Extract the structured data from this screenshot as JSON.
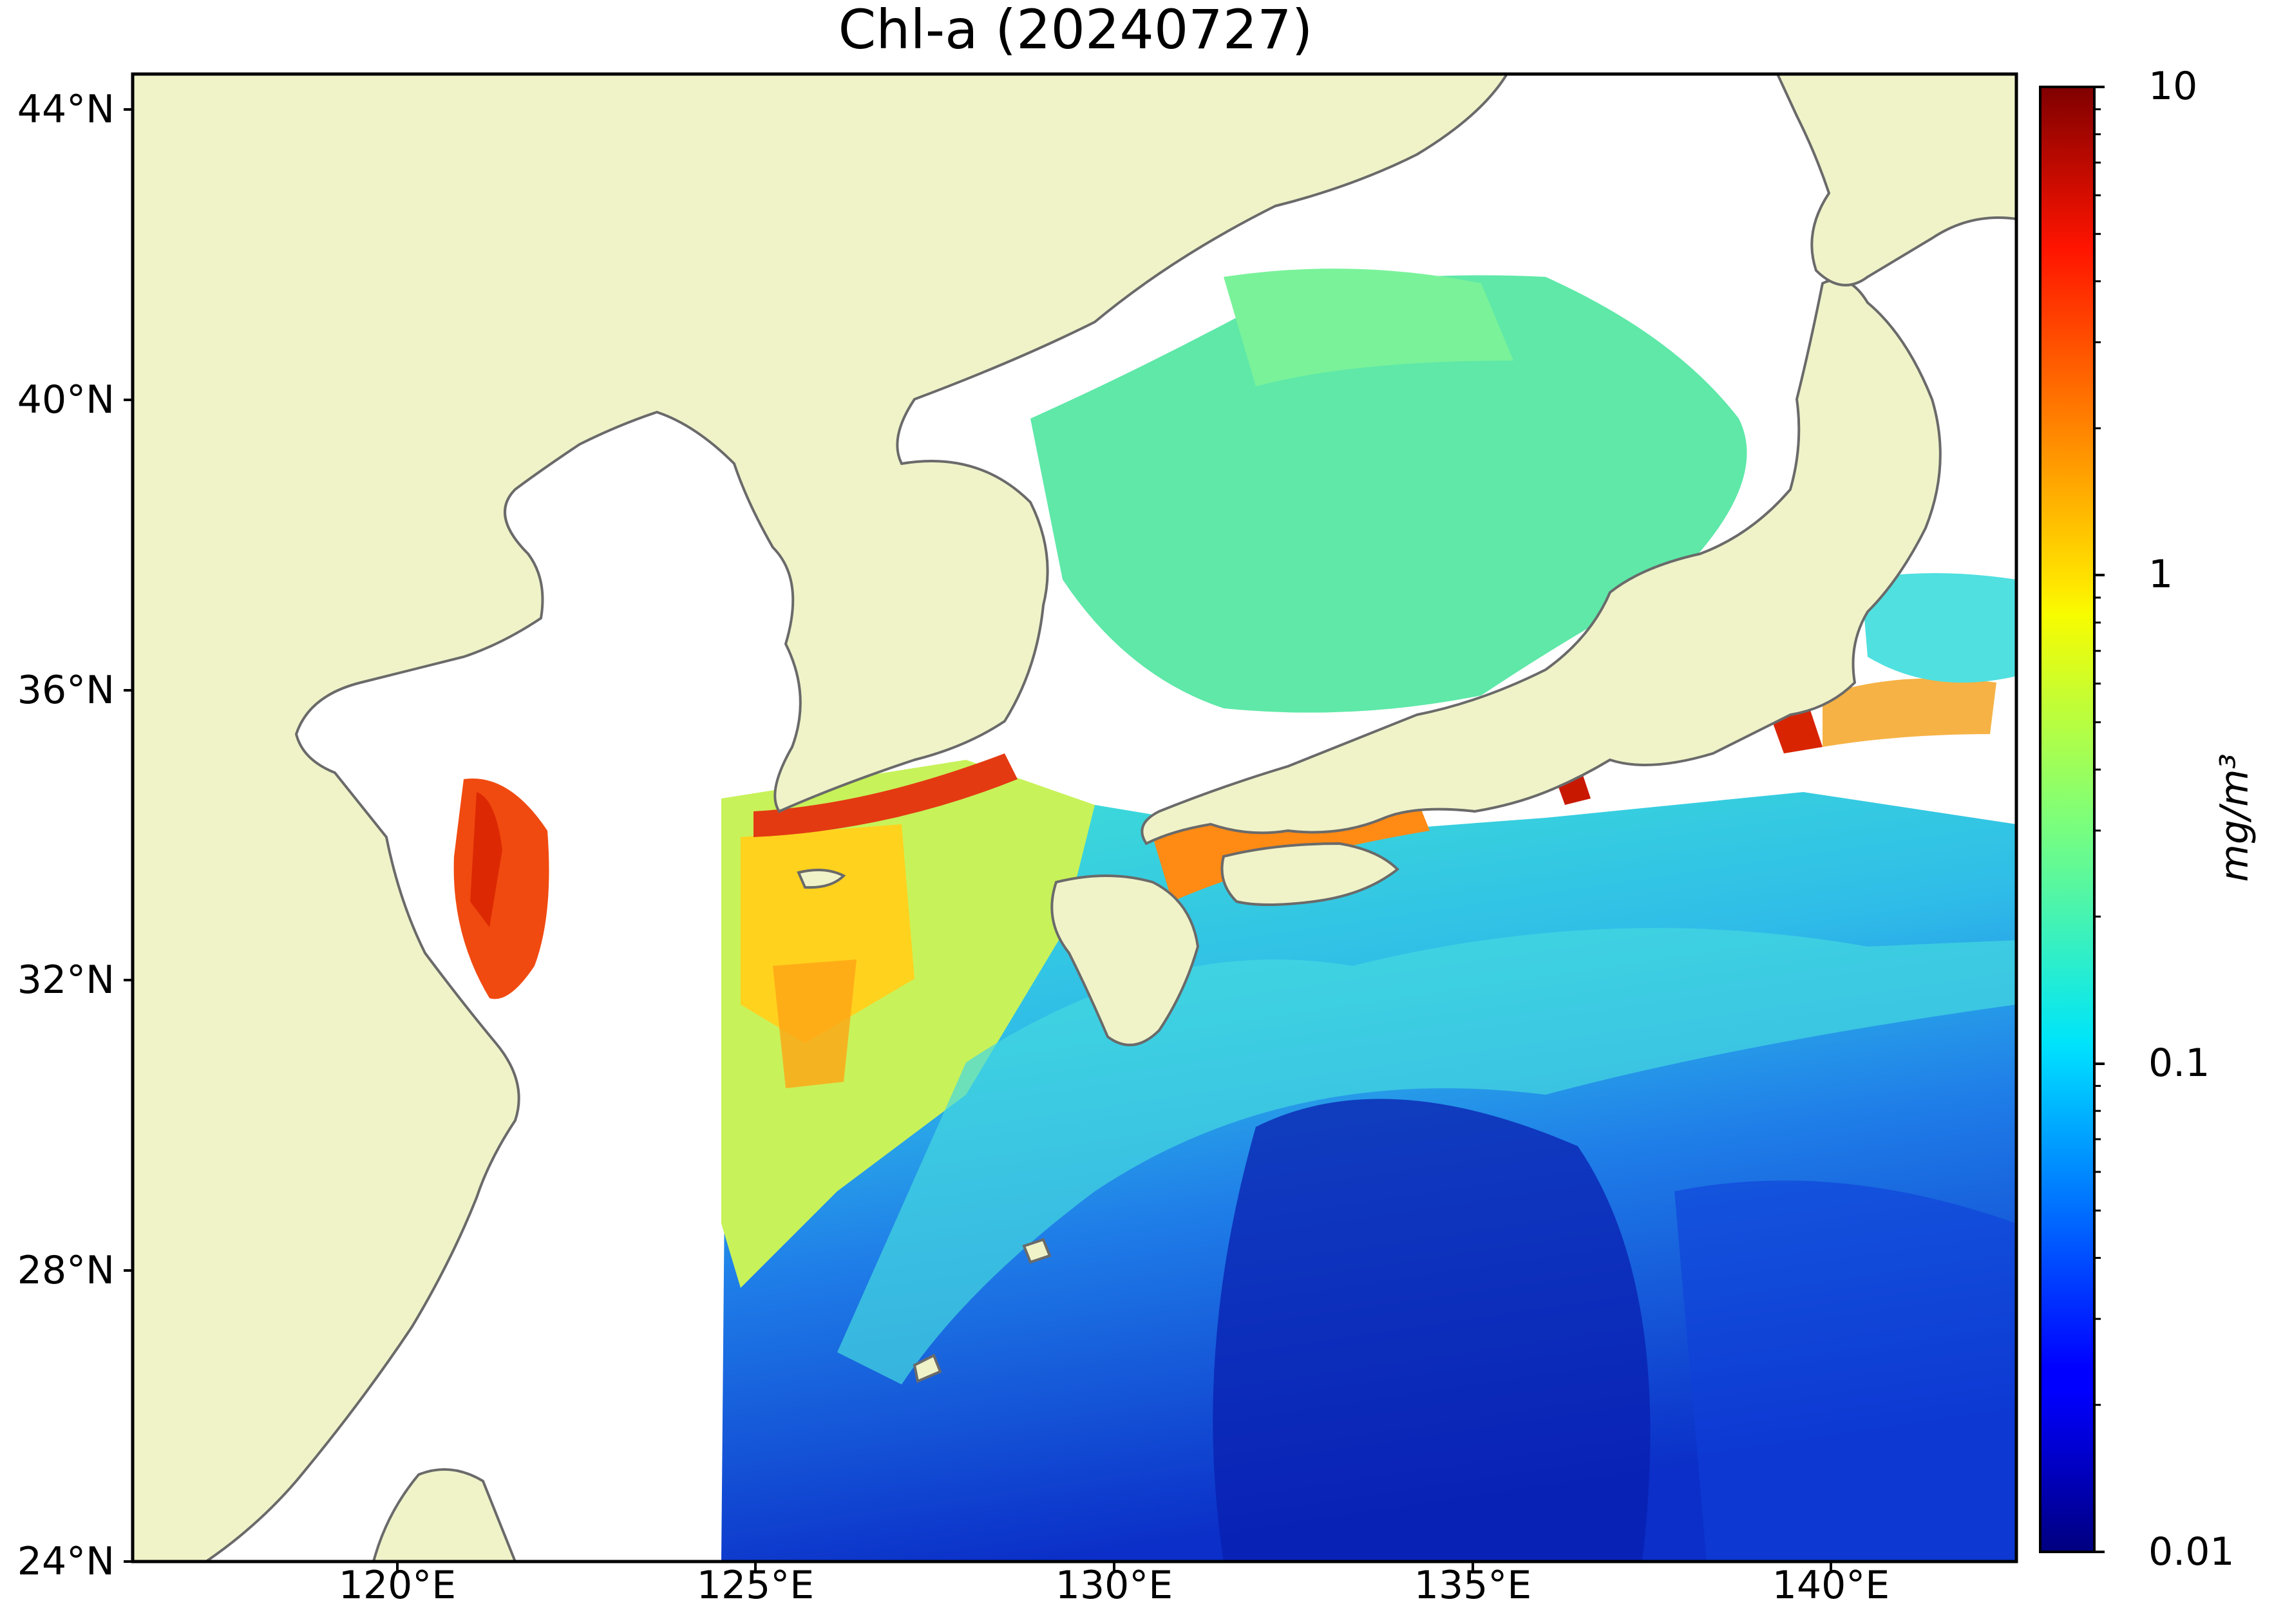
{
  "title": "Chl-a (20240727)",
  "map": {
    "lat_ticks": [
      "44°N",
      "40°N",
      "36°N",
      "32°N",
      "28°N",
      "24°N"
    ],
    "lon_ticks": [
      "120°E",
      "125°E",
      "130°E",
      "135°E",
      "140°E"
    ],
    "extent": {
      "lon_min": 116.7,
      "lon_max": 143.0,
      "lat_min": 24.0,
      "lat_max": 44.5
    },
    "land_color": "#f0f3c8",
    "coast_color": "#6a6a6a",
    "nodata_color": "#ffffff"
  },
  "colorbar": {
    "label_top": "10",
    "label_1": "1",
    "label_01": "0.1",
    "label_bottom": "0.01",
    "units": "mg/m³",
    "scale": "log",
    "range": [
      0.01,
      10
    ],
    "colormap": "jet"
  }
}
